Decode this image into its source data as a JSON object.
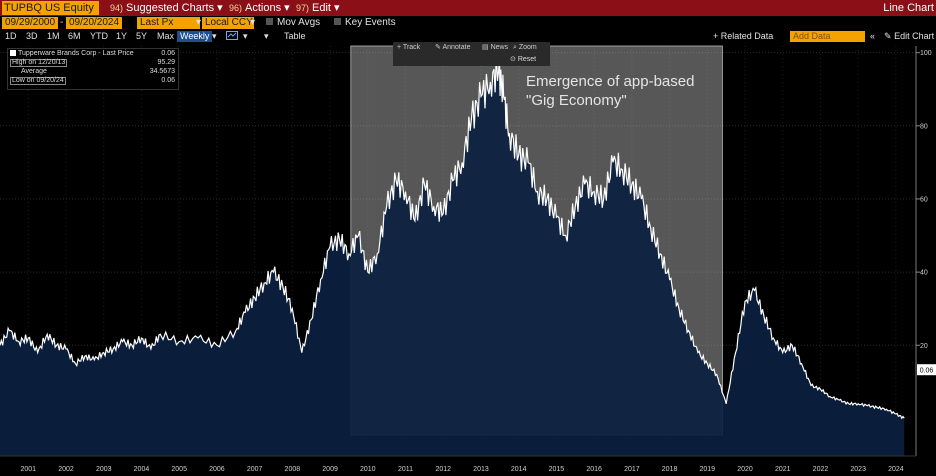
{
  "toolbar": {
    "ticker": "TUPBQ US Equity",
    "suggested_num": "94)",
    "suggested": "Suggested Charts",
    "actions_num": "96)",
    "actions": "Actions",
    "edit_num": "97)",
    "edit": "Edit",
    "chart_type": "Line Chart"
  },
  "controls": {
    "start_date": "09/29/2000",
    "end_date": "09/20/2024",
    "field": "Last Px",
    "currency": "Local CCY",
    "mov_avgs": "Mov Avgs",
    "key_events": "Key Events"
  },
  "periods": [
    "1D",
    "3D",
    "1M",
    "6M",
    "YTD",
    "1Y",
    "5Y",
    "Max"
  ],
  "frequency": "Weekly",
  "table_label": "Table",
  "related_data": "+ Related Data",
  "add_data_placeholder": "Add Data",
  "edit_chart": "Edit Chart",
  "chart_tools": {
    "track": "Track",
    "annotate": "Annotate",
    "news": "News",
    "zoom": "Zoom",
    "reset": "Reset"
  },
  "legend": {
    "series_name": "Tupperware Brands Corp - Last Price",
    "last": "0.06",
    "high_label": "High on 12/20/13",
    "high": "95.29",
    "avg_label": "Average",
    "avg": "34.5673",
    "low_label": "Low on 09/20/24",
    "low": "0.06"
  },
  "colors": {
    "area_fill": "#0b2140",
    "line": "#ffffff",
    "highlight": "#d0d0d0",
    "accent": "#f3a200",
    "header": "#8a0f16"
  },
  "chart_data": {
    "type": "area",
    "series": [
      {
        "name": "Tupperware Brands Corp - Last Price",
        "x": [
          2000.75,
          2001.0,
          2001.25,
          2001.5,
          2001.75,
          2002.0,
          2002.25,
          2002.5,
          2002.75,
          2003.0,
          2003.25,
          2003.5,
          2003.75,
          2004.0,
          2004.25,
          2004.5,
          2004.75,
          2005.0,
          2005.5,
          2006.0,
          2006.5,
          2007.0,
          2007.25,
          2007.5,
          2007.75,
          2008.0,
          2008.25,
          2008.5,
          2008.75,
          2009.0,
          2009.25,
          2009.5,
          2009.75,
          2010.0,
          2010.25,
          2010.5,
          2010.75,
          2011.0,
          2011.25,
          2011.5,
          2011.75,
          2012.0,
          2012.25,
          2012.5,
          2012.75,
          2013.0,
          2013.25,
          2013.5,
          2013.75,
          2013.97,
          2014.1,
          2014.25,
          2014.5,
          2014.75,
          2015.0,
          2015.25,
          2015.5,
          2015.75,
          2016.0,
          2016.25,
          2016.5,
          2016.75,
          2017.0,
          2017.25,
          2017.5,
          2017.75,
          2018.0,
          2018.25,
          2018.5,
          2018.75,
          2019.0,
          2019.25,
          2019.5,
          2019.75,
          2020.0,
          2020.25,
          2020.5,
          2020.75,
          2021.0,
          2021.25,
          2021.5,
          2021.75,
          2022.0,
          2022.25,
          2022.5,
          2022.75,
          2023.0,
          2023.25,
          2023.5,
          2023.75,
          2024.0,
          2024.25,
          2024.5,
          2024.72
        ],
        "y": [
          20,
          24,
          21,
          22,
          18,
          23,
          20,
          19,
          15,
          17,
          16,
          18,
          19,
          21,
          20,
          22,
          19,
          23,
          21,
          22,
          20,
          24,
          29,
          33,
          37,
          40,
          36,
          30,
          18,
          27,
          38,
          47,
          49,
          45,
          50,
          40,
          45,
          58,
          65,
          62,
          54,
          64,
          58,
          56,
          65,
          70,
          82,
          88,
          92,
          95.29,
          88,
          78,
          72,
          70,
          62,
          60,
          55,
          50,
          58,
          64,
          62,
          60,
          70,
          68,
          64,
          60,
          52,
          45,
          38,
          30,
          24,
          18,
          15,
          12,
          4,
          18,
          32,
          35,
          28,
          22,
          18,
          20,
          15,
          9,
          8,
          6,
          5,
          4,
          4,
          3.5,
          3,
          2.5,
          1.2,
          0.06
        ]
      }
    ],
    "x_ticks": [
      "2001",
      "2002",
      "2003",
      "2004",
      "2005",
      "2006",
      "2007",
      "2008",
      "2009",
      "2010",
      "2011",
      "2012",
      "2013",
      "2014",
      "2015",
      "2016",
      "2017",
      "2018",
      "2019",
      "2020",
      "2021",
      "2022",
      "2023",
      "2024"
    ],
    "y_ticks": [
      20,
      40,
      60,
      80,
      100
    ],
    "ylim": [
      -10,
      101
    ],
    "last_value_label": "0.06",
    "highlight_range": [
      2010.05,
      2019.9
    ],
    "annotation": [
      "Emergence of app-based",
      "\"Gig Economy\""
    ],
    "grid": true
  }
}
